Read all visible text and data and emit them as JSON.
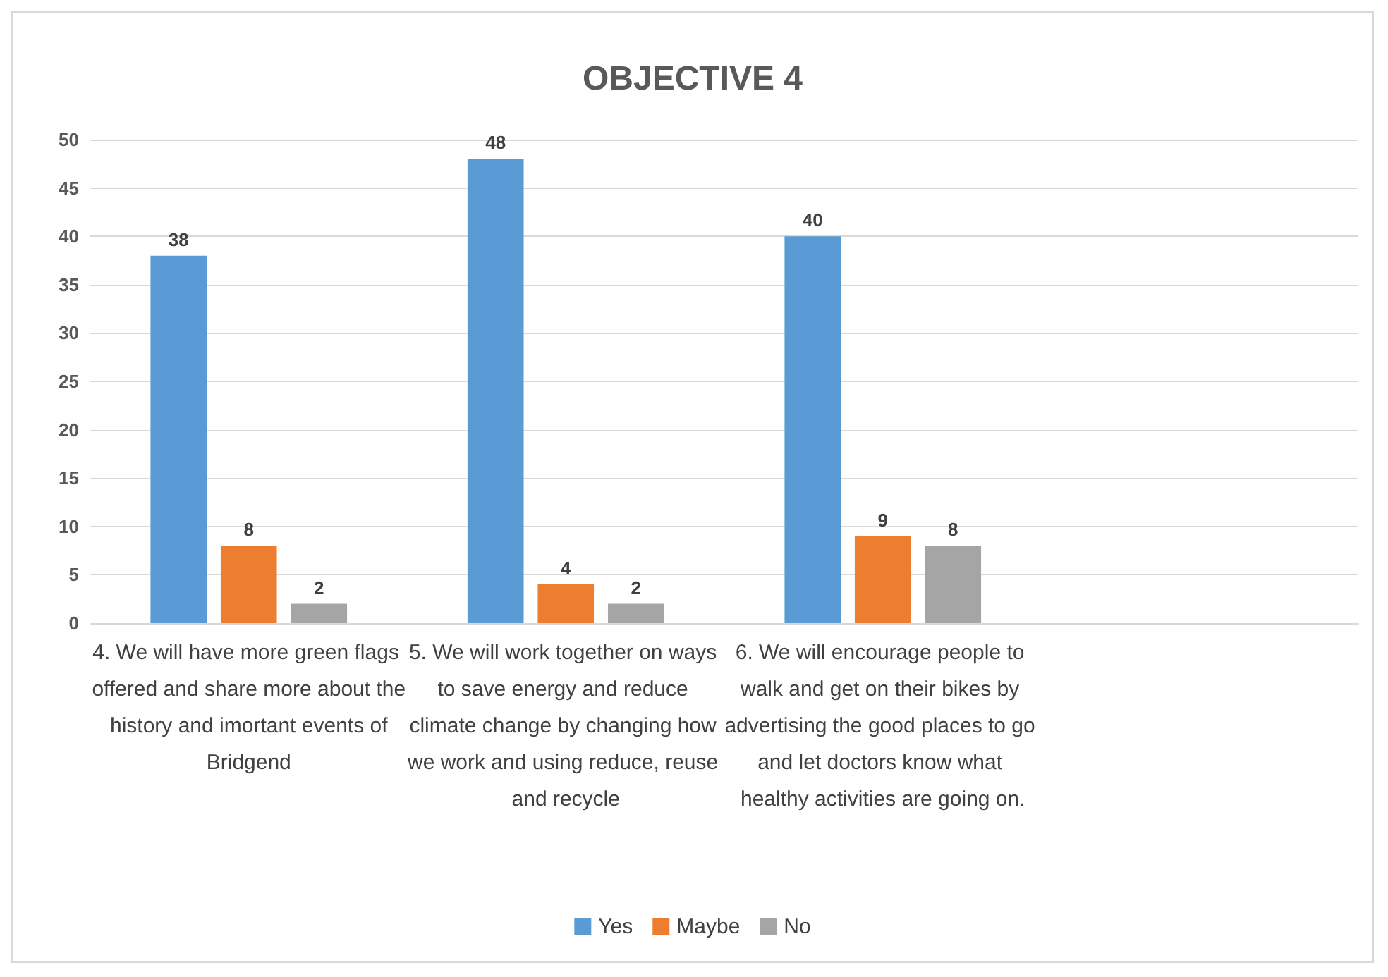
{
  "chart_data": {
    "type": "bar",
    "title": "OBJECTIVE 4",
    "categories": [
      "4. We will have more green flags offered and share more about the history and imortant events of Bridgend",
      "5. We will work together on ways to save energy and reduce climate change by changing how we work and using reduce, reuse and recycle",
      "6. We will encourage people to walk and get on their bikes by advertising the good places to go and let doctors know what healthy activities are going on.",
      null
    ],
    "series": [
      {
        "name": "Yes",
        "color": "#5b9bd5",
        "values": [
          38,
          48,
          40,
          null
        ]
      },
      {
        "name": "Maybe",
        "color": "#ed7d31",
        "values": [
          8,
          4,
          9,
          null
        ]
      },
      {
        "name": "No",
        "color": "#a5a5a5",
        "values": [
          2,
          2,
          8,
          null
        ]
      }
    ],
    "ylim": [
      0,
      50
    ],
    "yticks": [
      0,
      5,
      10,
      15,
      20,
      25,
      30,
      35,
      40,
      45,
      50
    ],
    "grid": "y",
    "legend": "bottom",
    "data_labels": true
  }
}
